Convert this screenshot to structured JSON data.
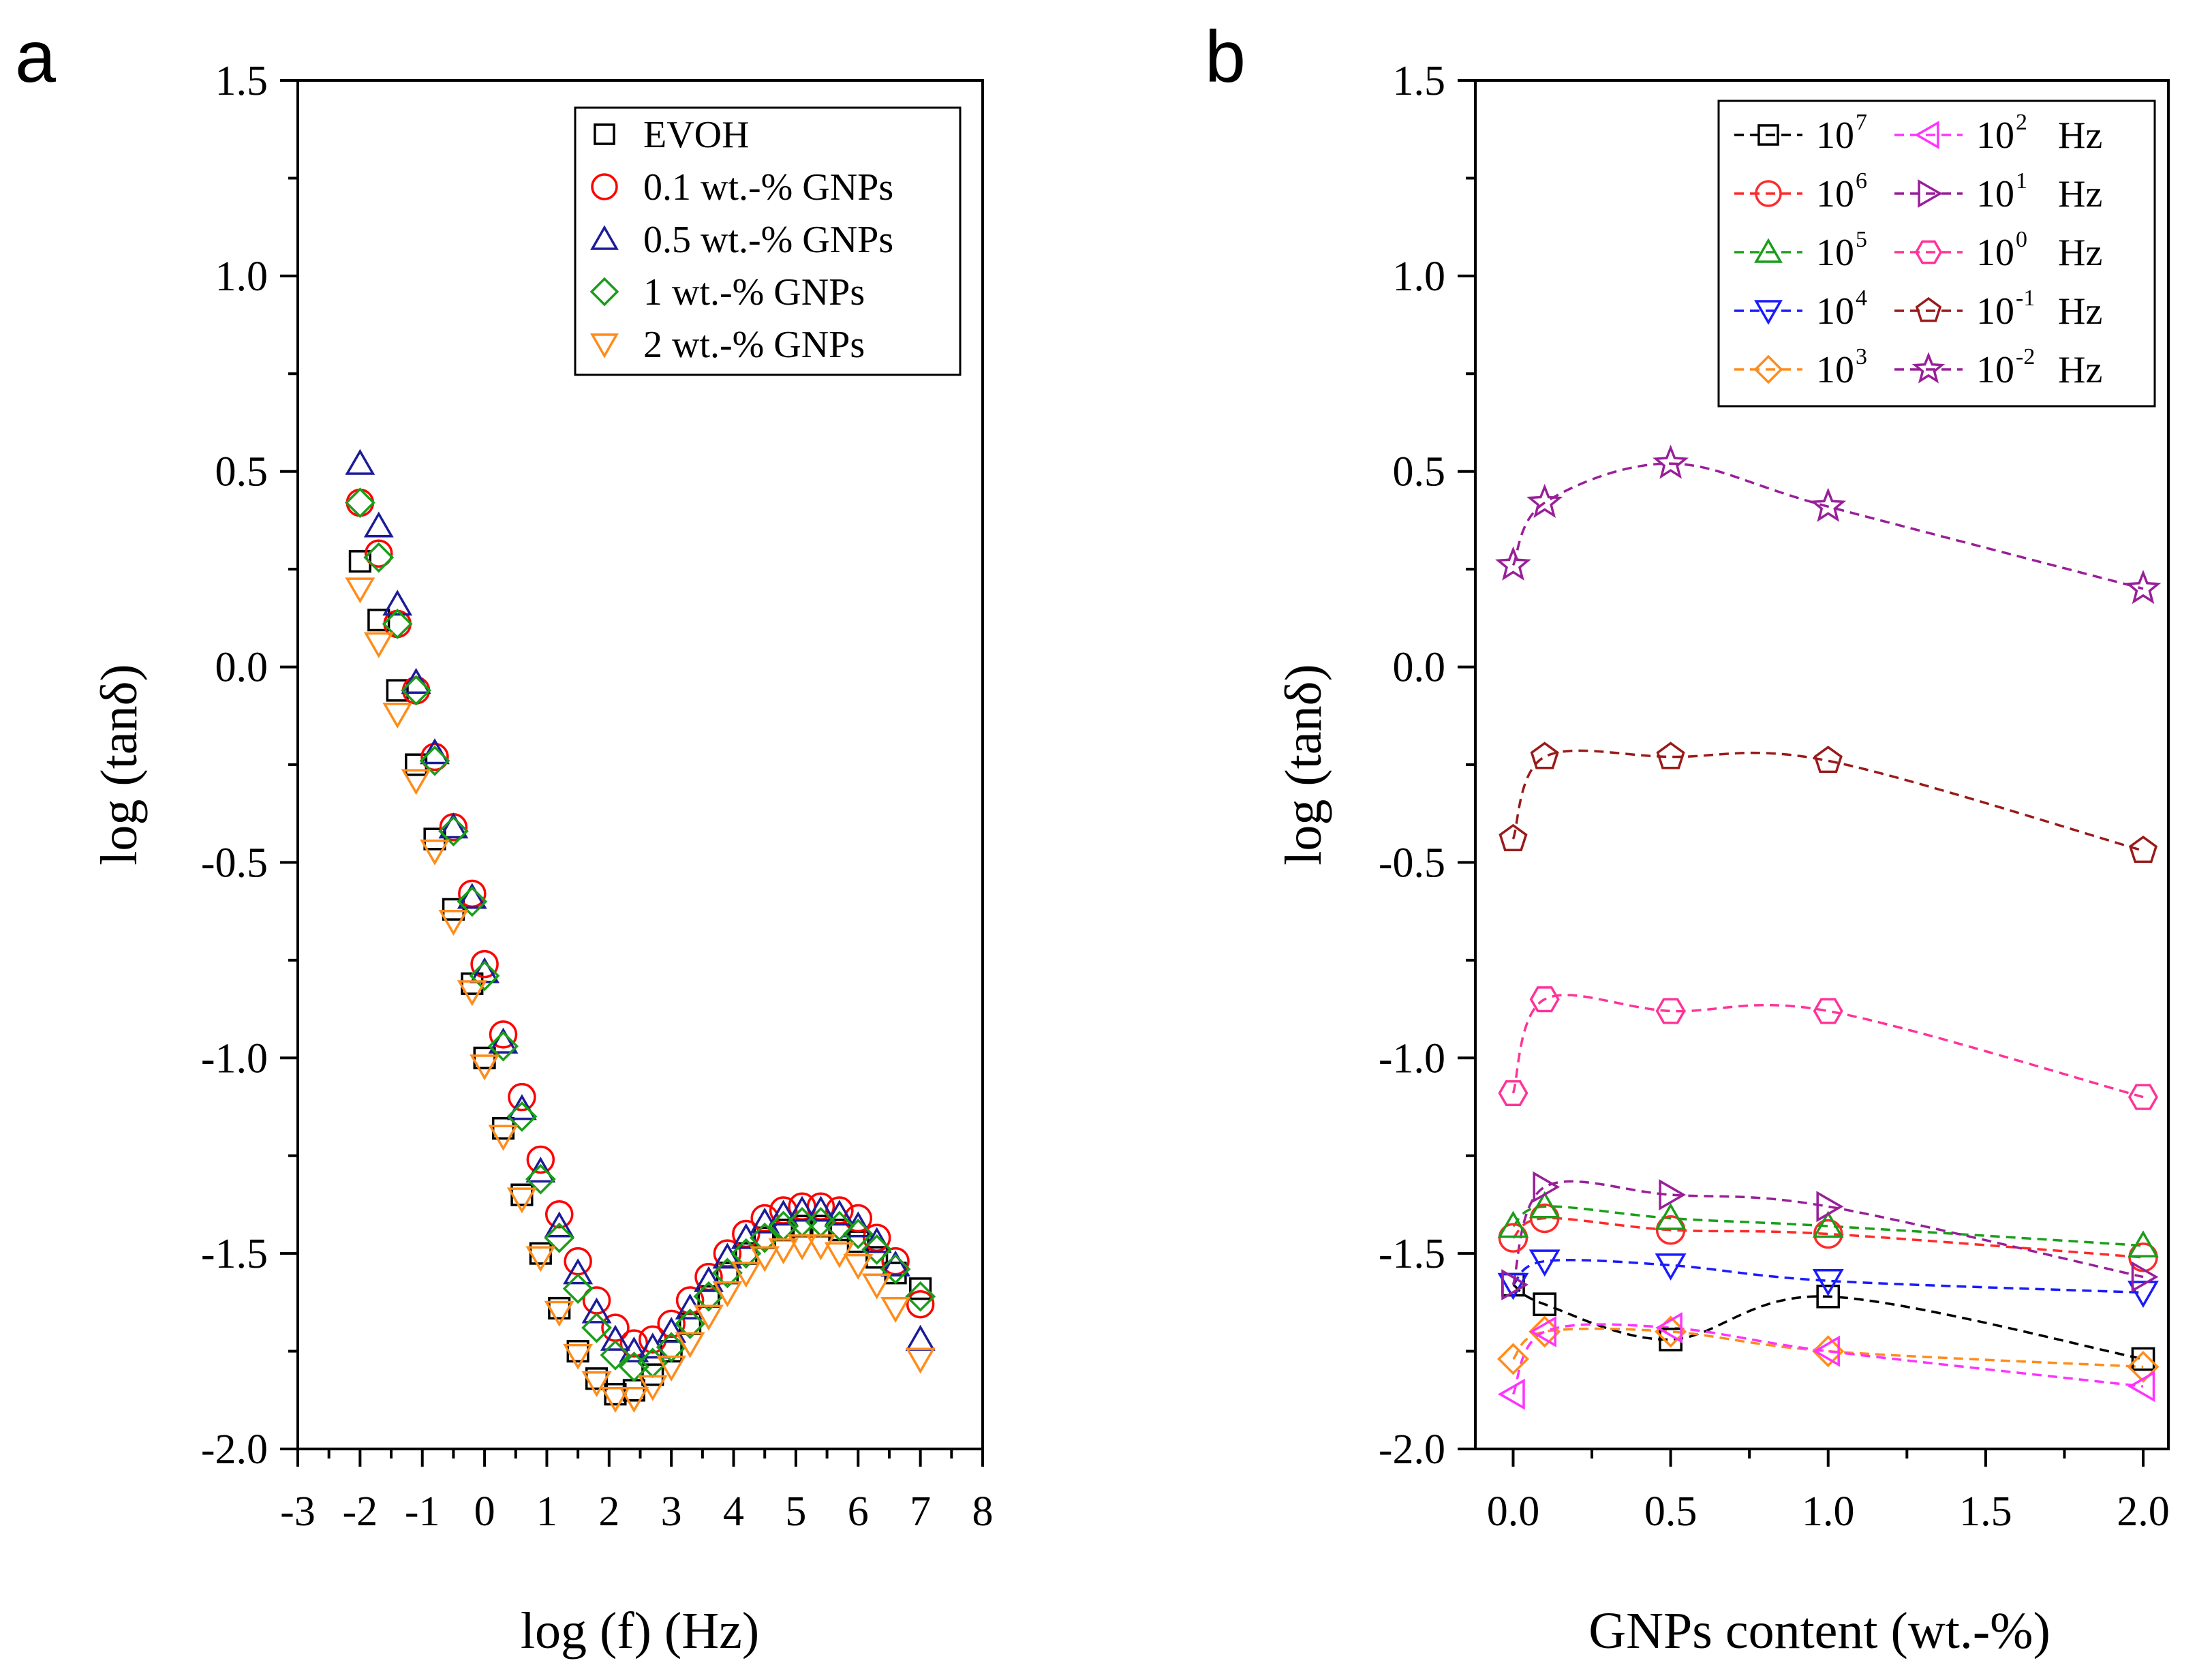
{
  "chart_data": [
    {
      "panel": "a",
      "type": "scatter",
      "xlabel": "log (f) (Hz)",
      "ylabel": "log (tanδ)",
      "xlim": [
        -3,
        8
      ],
      "ylim": [
        -2.0,
        1.5
      ],
      "xticks": [
        -3,
        -2,
        -1,
        0,
        1,
        2,
        3,
        4,
        5,
        6,
        7,
        8
      ],
      "xtick_labels": [
        "-3",
        "-2",
        "-1",
        "0",
        "1",
        "2",
        "3",
        "4",
        "5",
        "6",
        "7",
        "8"
      ],
      "yticks": [
        -2.0,
        -1.5,
        -1.0,
        -0.5,
        0.0,
        0.5,
        1.0,
        1.5
      ],
      "ytick_labels": [
        "-2.0",
        "-1.5",
        "-1.0",
        "-0.5",
        "0.0",
        "0.5",
        "1.0",
        "1.5"
      ],
      "legend_position": "top-right",
      "x": [
        -2.0,
        -1.7,
        -1.4,
        -1.1,
        -0.8,
        -0.5,
        -0.2,
        0.0,
        0.3,
        0.6,
        0.9,
        1.2,
        1.5,
        1.8,
        2.1,
        2.4,
        2.7,
        3.0,
        3.3,
        3.6,
        3.9,
        4.2,
        4.5,
        4.8,
        5.1,
        5.4,
        5.7,
        6.0,
        6.3,
        6.6,
        7.0
      ],
      "series": [
        {
          "name": "EVOH",
          "marker": "square",
          "color": "#000000",
          "values": [
            0.27,
            0.12,
            -0.06,
            -0.25,
            -0.44,
            -0.62,
            -0.81,
            -1.0,
            -1.18,
            -1.35,
            -1.5,
            -1.64,
            -1.75,
            -1.82,
            -1.86,
            -1.85,
            -1.81,
            -1.75,
            -1.68,
            -1.61,
            -1.55,
            -1.5,
            -1.46,
            -1.44,
            -1.43,
            -1.43,
            -1.44,
            -1.47,
            -1.51,
            -1.55,
            -1.59
          ]
        },
        {
          "name": "0.1 wt.-% GNPs",
          "marker": "circle",
          "color": "#ff0000",
          "values": [
            0.42,
            0.29,
            0.11,
            -0.06,
            -0.23,
            -0.41,
            -0.58,
            -0.76,
            -0.94,
            -1.1,
            -1.26,
            -1.4,
            -1.52,
            -1.62,
            -1.69,
            -1.73,
            -1.72,
            -1.68,
            -1.62,
            -1.56,
            -1.5,
            -1.45,
            -1.41,
            -1.39,
            -1.38,
            -1.38,
            -1.39,
            -1.41,
            -1.46,
            -1.52,
            -1.63
          ]
        },
        {
          "name": "0.5 wt.-% GNPs",
          "marker": "triangle-up",
          "color": "#1c1c99",
          "values": [
            0.52,
            0.36,
            0.16,
            -0.04,
            -0.22,
            -0.41,
            -0.59,
            -0.78,
            -0.96,
            -1.13,
            -1.29,
            -1.43,
            -1.55,
            -1.65,
            -1.72,
            -1.75,
            -1.74,
            -1.7,
            -1.64,
            -1.57,
            -1.51,
            -1.46,
            -1.42,
            -1.4,
            -1.39,
            -1.39,
            -1.4,
            -1.43,
            -1.47,
            -1.53,
            -1.72
          ]
        },
        {
          "name": "1 wt.-% GNPs",
          "marker": "diamond",
          "color": "#1a9e1a",
          "values": [
            0.42,
            0.28,
            0.11,
            -0.06,
            -0.24,
            -0.42,
            -0.6,
            -0.79,
            -0.97,
            -1.15,
            -1.31,
            -1.46,
            -1.59,
            -1.69,
            -1.76,
            -1.79,
            -1.78,
            -1.74,
            -1.68,
            -1.61,
            -1.55,
            -1.5,
            -1.46,
            -1.43,
            -1.42,
            -1.42,
            -1.43,
            -1.45,
            -1.49,
            -1.54,
            -1.61
          ]
        },
        {
          "name": "2 wt.-% GNPs",
          "marker": "triangle-down",
          "color": "#ff8c1a",
          "values": [
            0.2,
            0.06,
            -0.12,
            -0.29,
            -0.47,
            -0.65,
            -0.83,
            -1.02,
            -1.2,
            -1.36,
            -1.51,
            -1.65,
            -1.76,
            -1.83,
            -1.87,
            -1.87,
            -1.84,
            -1.79,
            -1.73,
            -1.66,
            -1.6,
            -1.55,
            -1.51,
            -1.49,
            -1.48,
            -1.48,
            -1.5,
            -1.53,
            -1.58,
            -1.64,
            -1.77
          ]
        }
      ]
    },
    {
      "panel": "b",
      "type": "line",
      "xlabel": "GNPs content (wt.-%)",
      "ylabel": "log (tanδ)",
      "xlim": [
        -0.12,
        2.08
      ],
      "ylim": [
        -2.0,
        1.5
      ],
      "xticks": [
        0.0,
        0.5,
        1.0,
        1.5,
        2.0
      ],
      "xtick_labels": [
        "0.0",
        "0.5",
        "1.0",
        "1.5",
        "2.0"
      ],
      "yticks": [
        -2.0,
        -1.5,
        -1.0,
        -0.5,
        0.0,
        0.5,
        1.0,
        1.5
      ],
      "ytick_labels": [
        "-2.0",
        "-1.5",
        "-1.0",
        "-0.5",
        "0.0",
        "0.5",
        "1.0",
        "1.5"
      ],
      "legend_position": "top-right",
      "legend_unit": "Hz",
      "x": [
        0.0,
        0.1,
        0.5,
        1.0,
        2.0
      ],
      "series": [
        {
          "name": "10^7",
          "base": "10",
          "exp": "7",
          "marker": "square",
          "color": "#000000",
          "values": [
            -1.58,
            -1.63,
            -1.72,
            -1.61,
            -1.77
          ]
        },
        {
          "name": "10^6",
          "base": "10",
          "exp": "6",
          "marker": "circle",
          "color": "#ff2a2a",
          "values": [
            -1.46,
            -1.41,
            -1.44,
            -1.45,
            -1.51
          ]
        },
        {
          "name": "10^5",
          "base": "10",
          "exp": "5",
          "marker": "triangle-up",
          "color": "#1a9e1a",
          "values": [
            -1.43,
            -1.38,
            -1.41,
            -1.43,
            -1.48
          ]
        },
        {
          "name": "10^4",
          "base": "10",
          "exp": "4",
          "marker": "triangle-down",
          "color": "#1a1aff",
          "values": [
            -1.58,
            -1.52,
            -1.53,
            -1.57,
            -1.6
          ]
        },
        {
          "name": "10^3",
          "base": "10",
          "exp": "3",
          "marker": "diamond",
          "color": "#ff8c1a",
          "values": [
            -1.77,
            -1.7,
            -1.7,
            -1.75,
            -1.79
          ]
        },
        {
          "name": "10^2",
          "base": "10",
          "exp": "2",
          "marker": "triangle-left",
          "color": "#ff33ff",
          "values": [
            -1.86,
            -1.7,
            -1.69,
            -1.75,
            -1.84
          ]
        },
        {
          "name": "10^1",
          "base": "10",
          "exp": "1",
          "marker": "triangle-right",
          "color": "#991f99",
          "values": [
            -1.58,
            -1.33,
            -1.35,
            -1.38,
            -1.56
          ]
        },
        {
          "name": "10^0",
          "base": "10",
          "exp": "0",
          "marker": "hexagon",
          "color": "#ff3399",
          "values": [
            -1.09,
            -0.85,
            -0.88,
            -0.88,
            -1.1
          ]
        },
        {
          "name": "10^-1",
          "base": "10",
          "exp": "-1",
          "marker": "pentagon",
          "color": "#991a1a",
          "values": [
            -0.44,
            -0.23,
            -0.23,
            -0.24,
            -0.47
          ]
        },
        {
          "name": "10^-2",
          "base": "10",
          "exp": "-2",
          "marker": "star",
          "color": "#991f99",
          "values": [
            0.26,
            0.42,
            0.52,
            0.41,
            0.2
          ]
        }
      ]
    }
  ],
  "panels": {
    "a": {
      "letter": "a"
    },
    "b": {
      "letter": "b"
    }
  }
}
